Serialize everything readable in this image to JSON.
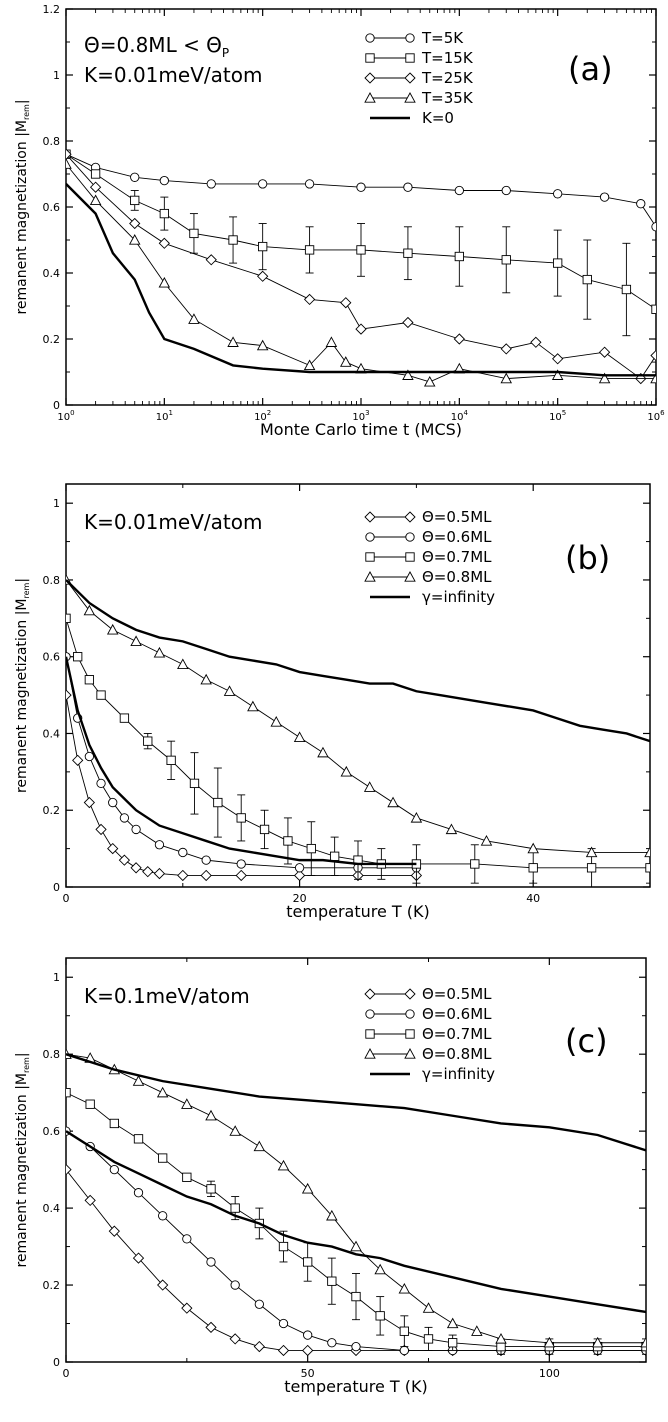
{
  "chart_data": [
    {
      "type": "line",
      "panel_label": "(a)",
      "xlabel": "Monte Carlo time t (MCS)",
      "ylabel": "remanent magnetization |M",
      "ylabel_sub": "rem",
      "xscale": "log",
      "xlim": [
        1,
        1000000
      ],
      "ylim": [
        0,
        1.2
      ],
      "xticks": [
        1,
        10,
        100,
        1000,
        10000,
        100000,
        1000000
      ],
      "xtick_labels": [
        {
          "base": "10",
          "exp": "0"
        },
        {
          "base": "10",
          "exp": "1"
        },
        {
          "base": "10",
          "exp": "2"
        },
        {
          "base": "10",
          "exp": "3"
        },
        {
          "base": "10",
          "exp": "4"
        },
        {
          "base": "10",
          "exp": "5"
        },
        {
          "base": "10",
          "exp": "6"
        }
      ],
      "yticks": [
        0,
        0.2,
        0.4,
        0.6,
        0.8,
        1,
        1.2
      ],
      "ytick_labels": [
        "0",
        "0.2",
        "0.4",
        "0.6",
        "0.8",
        "1",
        "1.2"
      ],
      "annotations": [
        "Θ=0.8ML < Θ",
        "P",
        "K=0.01meV/atom"
      ],
      "legend_position": "top-right",
      "series": [
        {
          "name": "T=5K",
          "marker": "circle",
          "x": [
            1,
            2,
            5,
            10,
            30,
            100,
            300,
            1000,
            3000,
            10000,
            30000,
            100000,
            300000,
            700000,
            1000000
          ],
          "y": [
            0.76,
            0.72,
            0.69,
            0.68,
            0.67,
            0.67,
            0.67,
            0.66,
            0.66,
            0.65,
            0.65,
            0.64,
            0.63,
            0.61,
            0.54
          ]
        },
        {
          "name": "T=15K",
          "marker": "square",
          "x": [
            1,
            2,
            5,
            10,
            20,
            50,
            100,
            300,
            1000,
            3000,
            10000,
            30000,
            100000,
            200000,
            500000,
            1000000
          ],
          "y": [
            0.76,
            0.7,
            0.62,
            0.58,
            0.52,
            0.5,
            0.48,
            0.47,
            0.47,
            0.46,
            0.45,
            0.44,
            0.43,
            0.38,
            0.35,
            0.29
          ],
          "err": [
            0,
            0,
            0.03,
            0.05,
            0.06,
            0.07,
            0.07,
            0.07,
            0.08,
            0.08,
            0.09,
            0.1,
            0.1,
            0.12,
            0.14,
            0.16
          ]
        },
        {
          "name": "T=25K",
          "marker": "diamond",
          "x": [
            1,
            2,
            5,
            10,
            30,
            100,
            300,
            700,
            1000,
            3000,
            10000,
            30000,
            60000,
            100000,
            300000,
            700000,
            1000000
          ],
          "y": [
            0.76,
            0.66,
            0.55,
            0.49,
            0.44,
            0.39,
            0.32,
            0.31,
            0.23,
            0.25,
            0.2,
            0.17,
            0.19,
            0.14,
            0.16,
            0.08,
            0.15
          ]
        },
        {
          "name": "T=35K",
          "marker": "triangle",
          "x": [
            1,
            2,
            5,
            10,
            20,
            50,
            100,
            300,
            500,
            700,
            1000,
            3000,
            5000,
            10000,
            30000,
            100000,
            300000,
            1000000
          ],
          "y": [
            0.73,
            0.62,
            0.5,
            0.37,
            0.26,
            0.19,
            0.18,
            0.12,
            0.19,
            0.13,
            0.11,
            0.09,
            0.07,
            0.11,
            0.08,
            0.09,
            0.08,
            0.08
          ]
        },
        {
          "name": "K=0",
          "marker": "none",
          "x": [
            1,
            2,
            3,
            5,
            7,
            10,
            20,
            50,
            100,
            300,
            1000,
            3000,
            10000,
            30000,
            100000,
            300000,
            1000000
          ],
          "y": [
            0.67,
            0.58,
            0.46,
            0.38,
            0.28,
            0.2,
            0.17,
            0.12,
            0.11,
            0.1,
            0.1,
            0.1,
            0.1,
            0.1,
            0.1,
            0.09,
            0.09
          ]
        }
      ]
    },
    {
      "type": "line",
      "panel_label": "(b)",
      "xlabel": "temperature T (K)",
      "ylabel": "remanent magnetization |M",
      "ylabel_sub": "rem",
      "xscale": "linear",
      "xlim": [
        0,
        50
      ],
      "ylim": [
        0,
        1.05
      ],
      "xticks": [
        0,
        20,
        40
      ],
      "xtick_labels": [
        "0",
        "20",
        "40"
      ],
      "yticks": [
        0,
        0.2,
        0.4,
        0.6,
        0.8,
        1
      ],
      "ytick_labels": [
        "0",
        "0.2",
        "0.4",
        "0.6",
        "0.8",
        "1"
      ],
      "annotations": [
        "K=0.01meV/atom"
      ],
      "legend_position": "top-right",
      "series": [
        {
          "name": "Θ=0.5ML",
          "marker": "diamond",
          "x": [
            0,
            1,
            2,
            3,
            4,
            5,
            6,
            7,
            8,
            10,
            12,
            15,
            20,
            25,
            30
          ],
          "y": [
            0.5,
            0.33,
            0.22,
            0.15,
            0.1,
            0.07,
            0.05,
            0.04,
            0.035,
            0.03,
            0.03,
            0.03,
            0.03,
            0.03,
            0.03
          ]
        },
        {
          "name": "Θ=0.6ML",
          "marker": "circle",
          "x": [
            0,
            1,
            2,
            3,
            4,
            5,
            6,
            8,
            10,
            12,
            15,
            20,
            25,
            30
          ],
          "y": [
            0.6,
            0.44,
            0.34,
            0.27,
            0.22,
            0.18,
            0.15,
            0.11,
            0.09,
            0.07,
            0.06,
            0.05,
            0.05,
            0.05
          ]
        },
        {
          "name": "Θ=0.7ML",
          "marker": "square",
          "x": [
            0,
            1,
            2,
            3,
            5,
            7,
            9,
            11,
            13,
            15,
            17,
            19,
            21,
            23,
            25,
            27,
            30,
            35,
            40,
            45,
            50
          ],
          "y": [
            0.7,
            0.6,
            0.54,
            0.5,
            0.44,
            0.38,
            0.33,
            0.27,
            0.22,
            0.18,
            0.15,
            0.12,
            0.1,
            0.08,
            0.07,
            0.06,
            0.06,
            0.06,
            0.05,
            0.05,
            0.05
          ],
          "err": [
            0,
            0,
            0,
            0,
            0,
            0.02,
            0.05,
            0.08,
            0.09,
            0.06,
            0.05,
            0.06,
            0.07,
            0.05,
            0.05,
            0.04,
            0.05,
            0.05,
            0.04,
            0.05,
            0.04
          ]
        },
        {
          "name": "Θ=0.8ML",
          "marker": "triangle",
          "x": [
            0,
            2,
            4,
            6,
            8,
            10,
            12,
            14,
            16,
            18,
            20,
            22,
            24,
            26,
            28,
            30,
            33,
            36,
            40,
            45,
            50
          ],
          "y": [
            0.8,
            0.72,
            0.67,
            0.64,
            0.61,
            0.58,
            0.54,
            0.51,
            0.47,
            0.43,
            0.39,
            0.35,
            0.3,
            0.26,
            0.22,
            0.18,
            0.15,
            0.12,
            0.1,
            0.09,
            0.09
          ]
        },
        {
          "name": "γ=infinity",
          "marker": "none",
          "x": [
            0,
            2,
            4,
            6,
            8,
            10,
            12,
            14,
            16,
            18,
            20,
            22,
            24,
            26,
            28,
            30,
            32,
            34,
            36,
            38,
            40,
            42,
            44,
            46,
            48,
            50
          ],
          "y": [
            0.8,
            0.74,
            0.7,
            0.67,
            0.65,
            0.64,
            0.62,
            0.6,
            0.59,
            0.58,
            0.56,
            0.55,
            0.54,
            0.53,
            0.53,
            0.51,
            0.5,
            0.49,
            0.48,
            0.47,
            0.46,
            0.44,
            0.42,
            0.41,
            0.4,
            0.38
          ]
        },
        {
          "name": "",
          "marker": "none",
          "x": [
            0,
            1,
            2,
            3,
            4,
            5,
            6,
            8,
            10,
            12,
            14,
            16,
            18,
            20,
            22,
            25,
            28,
            30
          ],
          "y": [
            0.6,
            0.46,
            0.37,
            0.31,
            0.26,
            0.23,
            0.2,
            0.16,
            0.14,
            0.12,
            0.1,
            0.09,
            0.08,
            0.07,
            0.07,
            0.06,
            0.06,
            0.06
          ]
        }
      ]
    },
    {
      "type": "line",
      "panel_label": "(c)",
      "xlabel": "temperature T (K)",
      "ylabel": "remanent magnetization |M",
      "ylabel_sub": "rem",
      "xscale": "linear",
      "xlim": [
        0,
        120
      ],
      "ylim": [
        0,
        1.05
      ],
      "xticks": [
        0,
        50,
        100
      ],
      "xtick_labels": [
        "0",
        "50",
        "100"
      ],
      "yticks": [
        0,
        0.2,
        0.4,
        0.6,
        0.8,
        1
      ],
      "ytick_labels": [
        "0",
        "0.2",
        "0.4",
        "0.6",
        "0.8",
        "1"
      ],
      "annotations": [
        "K=0.1meV/atom"
      ],
      "legend_position": "top-right",
      "series": [
        {
          "name": "Θ=0.5ML",
          "marker": "diamond",
          "x": [
            0,
            5,
            10,
            15,
            20,
            25,
            30,
            35,
            40,
            45,
            50,
            60,
            70,
            80,
            90,
            100,
            110,
            120
          ],
          "y": [
            0.5,
            0.42,
            0.34,
            0.27,
            0.2,
            0.14,
            0.09,
            0.06,
            0.04,
            0.03,
            0.03,
            0.03,
            0.03,
            0.03,
            0.03,
            0.03,
            0.03,
            0.03
          ]
        },
        {
          "name": "Θ=0.6ML",
          "marker": "circle",
          "x": [
            0,
            5,
            10,
            15,
            20,
            25,
            30,
            35,
            40,
            45,
            50,
            55,
            60,
            70,
            80,
            90,
            100,
            110,
            120
          ],
          "y": [
            0.6,
            0.56,
            0.5,
            0.44,
            0.38,
            0.32,
            0.26,
            0.2,
            0.15,
            0.1,
            0.07,
            0.05,
            0.04,
            0.03,
            0.03,
            0.03,
            0.03,
            0.03,
            0.03
          ]
        },
        {
          "name": "Θ=0.7ML",
          "marker": "square",
          "x": [
            0,
            5,
            10,
            15,
            20,
            25,
            30,
            35,
            40,
            45,
            50,
            55,
            60,
            65,
            70,
            75,
            80,
            90,
            100,
            110,
            120
          ],
          "y": [
            0.7,
            0.67,
            0.62,
            0.58,
            0.53,
            0.48,
            0.45,
            0.4,
            0.36,
            0.3,
            0.26,
            0.21,
            0.17,
            0.12,
            0.08,
            0.06,
            0.05,
            0.04,
            0.04,
            0.04,
            0.04
          ],
          "err": [
            0,
            0,
            0,
            0,
            0,
            0,
            0.02,
            0.03,
            0.04,
            0.04,
            0.05,
            0.06,
            0.06,
            0.05,
            0.04,
            0.03,
            0.02,
            0.02,
            0.02,
            0.02,
            0.02
          ]
        },
        {
          "name": "Θ=0.8ML",
          "marker": "triangle",
          "x": [
            0,
            5,
            10,
            15,
            20,
            25,
            30,
            35,
            40,
            45,
            50,
            55,
            60,
            65,
            70,
            75,
            80,
            85,
            90,
            100,
            110,
            120
          ],
          "y": [
            0.8,
            0.79,
            0.76,
            0.73,
            0.7,
            0.67,
            0.64,
            0.6,
            0.56,
            0.51,
            0.45,
            0.38,
            0.3,
            0.24,
            0.19,
            0.14,
            0.1,
            0.08,
            0.06,
            0.05,
            0.05,
            0.05
          ]
        },
        {
          "name": "γ=infinity",
          "marker": "none",
          "x": [
            0,
            10,
            20,
            30,
            40,
            50,
            60,
            70,
            80,
            90,
            100,
            110,
            120
          ],
          "y": [
            0.8,
            0.76,
            0.73,
            0.71,
            0.69,
            0.68,
            0.67,
            0.66,
            0.64,
            0.62,
            0.61,
            0.59,
            0.55
          ]
        },
        {
          "name": "",
          "marker": "none",
          "x": [
            0,
            5,
            10,
            15,
            20,
            25,
            30,
            35,
            40,
            45,
            50,
            55,
            60,
            65,
            70,
            80,
            90,
            100,
            110,
            120
          ],
          "y": [
            0.6,
            0.56,
            0.52,
            0.49,
            0.46,
            0.43,
            0.41,
            0.38,
            0.36,
            0.33,
            0.31,
            0.3,
            0.28,
            0.27,
            0.25,
            0.22,
            0.19,
            0.17,
            0.15,
            0.13
          ]
        }
      ]
    }
  ]
}
